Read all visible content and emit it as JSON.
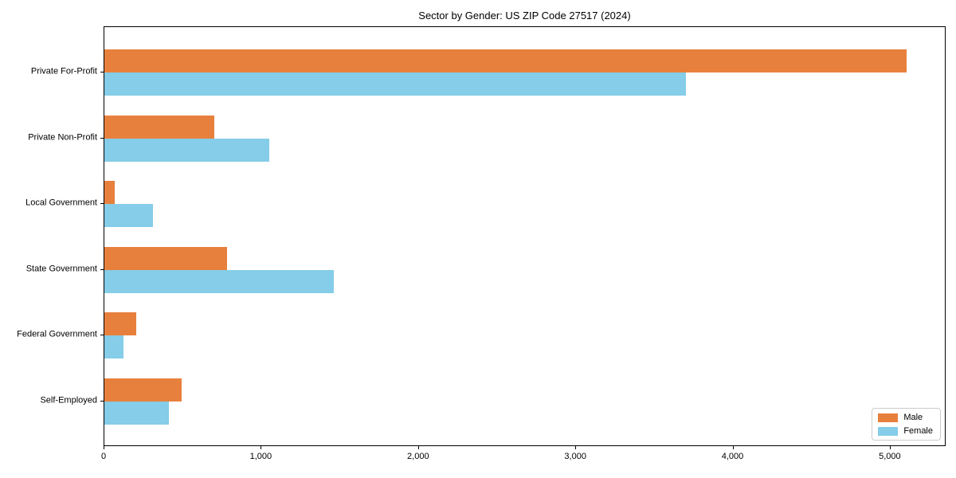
{
  "chart_data": {
    "type": "bar",
    "orientation": "horizontal",
    "title": "Sector by Gender: US ZIP Code 27517 (2024)",
    "categories": [
      "Private For-Profit",
      "Private Non-Profit",
      "Local Government",
      "State Government",
      "Federal Government",
      "Self-Employed"
    ],
    "series": [
      {
        "name": "Male",
        "color": "#e8803d",
        "values": [
          5100,
          700,
          65,
          780,
          200,
          490
        ]
      },
      {
        "name": "Female",
        "color": "#85cde8",
        "values": [
          3700,
          1050,
          310,
          1460,
          120,
          410
        ]
      }
    ],
    "xlabel": "",
    "ylabel": "",
    "xlim": [
      0,
      5355
    ],
    "x_ticks": [
      0,
      1000,
      2000,
      3000,
      4000,
      5000
    ],
    "x_tick_labels": [
      "0",
      "1,000",
      "2,000",
      "3,000",
      "4,000",
      "5,000"
    ],
    "grid": false,
    "legend": {
      "position": "lower right",
      "entries": [
        "Male",
        "Female"
      ]
    },
    "frame": true,
    "background_color": "#ffffff",
    "spine_color": "#000000"
  }
}
